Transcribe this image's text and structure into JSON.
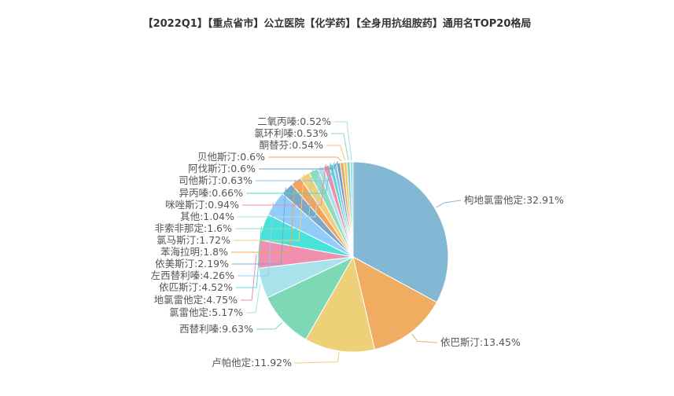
{
  "chart_data": {
    "type": "pie",
    "title": "【2022Q1】【重点省市】公立医院【化学药】【全身用抗组胺药】通用名TOP20格局",
    "legend": "none",
    "slices": [
      {
        "name": "枸地氯雷他定",
        "value": 32.91,
        "label": "枸地氯雷他定:32.91%",
        "color": "#83b8d4"
      },
      {
        "name": "依巴斯汀",
        "value": 13.45,
        "label": "依巴斯汀:13.45%",
        "color": "#f0ad62"
      },
      {
        "name": "卢帕他定",
        "value": 11.92,
        "label": "卢帕他定:11.92%",
        "color": "#edd077"
      },
      {
        "name": "西替利嗪",
        "value": 9.63,
        "label": "西替利嗪:9.63%",
        "color": "#7cd8b5"
      },
      {
        "name": "氯雷他定",
        "value": 5.17,
        "label": "氯雷他定:5.17%",
        "color": "#a8e3ec"
      },
      {
        "name": "地氯雷他定",
        "value": 4.75,
        "label": "地氯雷他定:4.75%",
        "color": "#f08fae"
      },
      {
        "name": "依匹斯汀",
        "value": 4.52,
        "label": "依匹斯汀:4.52%",
        "color": "#47e2d8"
      },
      {
        "name": "左西替利嗪",
        "value": 4.26,
        "label": "左西替利嗪:4.26%",
        "color": "#91ccfb"
      },
      {
        "name": "依美斯汀",
        "value": 2.19,
        "label": "依美斯汀:2.19%",
        "color": "#7aa9c8"
      },
      {
        "name": "苯海拉明",
        "value": 1.8,
        "label": "苯海拉明:1.8%",
        "color": "#f2a35c"
      },
      {
        "name": "氯马斯汀",
        "value": 1.72,
        "label": "氯马斯汀:1.72%",
        "color": "#eed07c"
      },
      {
        "name": "非索非那定",
        "value": 1.6,
        "label": "非索非那定:1.6%",
        "color": "#8fdbc2"
      },
      {
        "name": "其他",
        "value": 1.04,
        "label": "其他:1.04%",
        "color": "#a9e0ec"
      },
      {
        "name": "咪唑斯汀",
        "value": 0.94,
        "label": "咪唑斯汀:0.94%",
        "color": "#f08ca8"
      },
      {
        "name": "异丙嗪",
        "value": 0.66,
        "label": "异丙嗪:0.66%",
        "color": "#4fd6d0"
      },
      {
        "name": "司他斯汀",
        "value": 0.63,
        "label": "司他斯汀:0.63%",
        "color": "#84bff0"
      },
      {
        "name": "阿伐斯汀",
        "value": 0.6,
        "label": "阿伐斯汀:0.6%",
        "color": "#6d9fc0"
      },
      {
        "name": "贝他斯汀",
        "value": 0.6,
        "label": "贝他斯汀:0.6%",
        "color": "#eaa85a"
      },
      {
        "name": "酮替芬",
        "value": 0.54,
        "label": "酮替芬:0.54%",
        "color": "#e9c870"
      },
      {
        "name": "氯环利嗪",
        "value": 0.53,
        "label": "氯环利嗪:0.53%",
        "color": "#84d6bc"
      },
      {
        "name": "二氧丙嗪",
        "value": 0.52,
        "label": "二氧丙嗪:0.52%",
        "color": "#a3dfe8"
      }
    ]
  }
}
